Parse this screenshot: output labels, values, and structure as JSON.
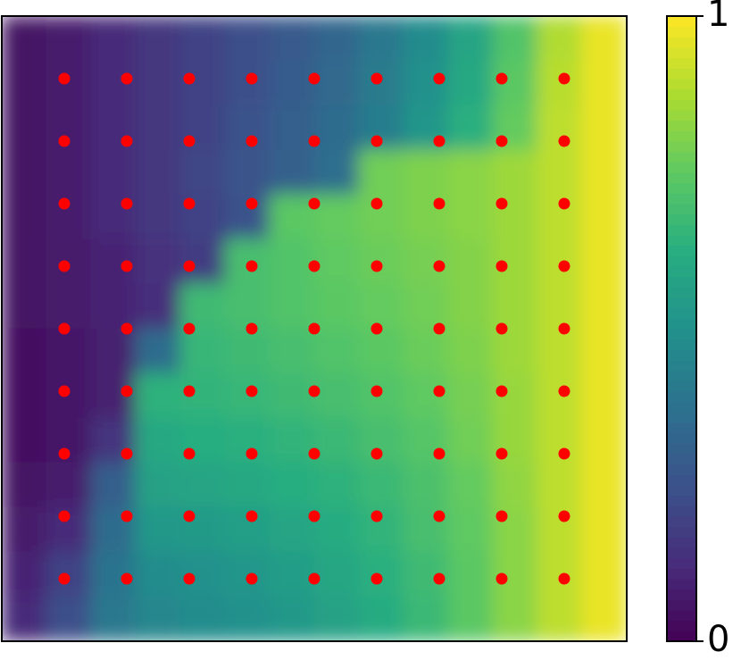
{
  "chart_data": {
    "type": "heatmap-scatter",
    "xlim": [
      0,
      1
    ],
    "ylim": [
      0,
      1
    ],
    "z": [
      [
        0.05,
        0.08,
        0.12,
        0.16,
        0.2,
        0.24,
        0.28,
        0.33,
        0.4,
        0.48,
        0.58,
        0.72,
        0.88,
        0.97
      ],
      [
        0.05,
        0.08,
        0.12,
        0.16,
        0.2,
        0.24,
        0.29,
        0.34,
        0.41,
        0.5,
        0.6,
        0.74,
        0.89,
        0.97
      ],
      [
        0.05,
        0.08,
        0.12,
        0.16,
        0.2,
        0.25,
        0.3,
        0.35,
        0.42,
        0.52,
        0.63,
        0.76,
        0.9,
        0.97
      ],
      [
        0.05,
        0.08,
        0.12,
        0.16,
        0.21,
        0.26,
        0.31,
        0.36,
        0.78,
        0.8,
        0.82,
        0.85,
        0.9,
        0.97
      ],
      [
        0.05,
        0.08,
        0.12,
        0.16,
        0.2,
        0.25,
        0.74,
        0.76,
        0.78,
        0.8,
        0.82,
        0.85,
        0.9,
        0.97
      ],
      [
        0.05,
        0.07,
        0.1,
        0.14,
        0.18,
        0.7,
        0.72,
        0.75,
        0.77,
        0.79,
        0.81,
        0.85,
        0.9,
        0.97
      ],
      [
        0.05,
        0.07,
        0.1,
        0.13,
        0.68,
        0.7,
        0.72,
        0.74,
        0.76,
        0.78,
        0.81,
        0.85,
        0.9,
        0.97
      ],
      [
        0.04,
        0.06,
        0.09,
        0.35,
        0.66,
        0.68,
        0.7,
        0.72,
        0.74,
        0.77,
        0.8,
        0.85,
        0.9,
        0.97
      ],
      [
        0.04,
        0.06,
        0.09,
        0.64,
        0.65,
        0.66,
        0.68,
        0.7,
        0.72,
        0.75,
        0.79,
        0.84,
        0.9,
        0.97
      ],
      [
        0.04,
        0.06,
        0.15,
        0.6,
        0.62,
        0.63,
        0.65,
        0.67,
        0.7,
        0.73,
        0.78,
        0.84,
        0.9,
        0.97
      ],
      [
        0.05,
        0.08,
        0.3,
        0.57,
        0.58,
        0.6,
        0.62,
        0.64,
        0.67,
        0.71,
        0.76,
        0.83,
        0.9,
        0.97
      ],
      [
        0.07,
        0.12,
        0.35,
        0.53,
        0.54,
        0.56,
        0.58,
        0.61,
        0.65,
        0.7,
        0.75,
        0.82,
        0.9,
        0.97
      ],
      [
        0.1,
        0.2,
        0.38,
        0.48,
        0.5,
        0.52,
        0.55,
        0.59,
        0.63,
        0.68,
        0.74,
        0.82,
        0.9,
        0.97
      ],
      [
        0.12,
        0.24,
        0.4,
        0.46,
        0.48,
        0.5,
        0.53,
        0.57,
        0.61,
        0.67,
        0.74,
        0.82,
        0.9,
        0.97
      ]
    ],
    "colormap": [
      "#440154",
      "#472d7b",
      "#3b528b",
      "#2c728e",
      "#21918c",
      "#28ae80",
      "#5ec962",
      "#addc30",
      "#fde725"
    ],
    "clim": [
      0,
      1
    ],
    "cticks": [
      0,
      1
    ],
    "points": {
      "color": "#ff0000",
      "x": [
        0.1,
        0.2,
        0.3,
        0.4,
        0.5,
        0.6,
        0.7,
        0.8,
        0.9,
        0.1,
        0.2,
        0.3,
        0.4,
        0.5,
        0.6,
        0.7,
        0.8,
        0.9,
        0.1,
        0.2,
        0.3,
        0.4,
        0.5,
        0.6,
        0.7,
        0.8,
        0.9,
        0.1,
        0.2,
        0.3,
        0.4,
        0.5,
        0.6,
        0.7,
        0.8,
        0.9,
        0.1,
        0.2,
        0.3,
        0.4,
        0.5,
        0.6,
        0.7,
        0.8,
        0.9,
        0.1,
        0.2,
        0.3,
        0.4,
        0.5,
        0.6,
        0.7,
        0.8,
        0.9,
        0.1,
        0.2,
        0.3,
        0.4,
        0.5,
        0.6,
        0.7,
        0.8,
        0.9,
        0.1,
        0.2,
        0.3,
        0.4,
        0.5,
        0.6,
        0.7,
        0.8,
        0.9,
        0.1,
        0.2,
        0.3,
        0.4,
        0.5,
        0.6,
        0.7,
        0.8,
        0.9
      ],
      "y": [
        0.9,
        0.9,
        0.9,
        0.9,
        0.9,
        0.9,
        0.9,
        0.9,
        0.9,
        0.8,
        0.8,
        0.8,
        0.8,
        0.8,
        0.8,
        0.8,
        0.8,
        0.8,
        0.7,
        0.7,
        0.7,
        0.7,
        0.7,
        0.7,
        0.7,
        0.7,
        0.7,
        0.6,
        0.6,
        0.6,
        0.6,
        0.6,
        0.6,
        0.6,
        0.6,
        0.6,
        0.5,
        0.5,
        0.5,
        0.5,
        0.5,
        0.5,
        0.5,
        0.5,
        0.5,
        0.4,
        0.4,
        0.4,
        0.4,
        0.4,
        0.4,
        0.4,
        0.4,
        0.4,
        0.3,
        0.3,
        0.3,
        0.3,
        0.3,
        0.3,
        0.3,
        0.3,
        0.3,
        0.2,
        0.2,
        0.2,
        0.2,
        0.2,
        0.2,
        0.2,
        0.2,
        0.2,
        0.1,
        0.1,
        0.1,
        0.1,
        0.1,
        0.1,
        0.1,
        0.1,
        0.1
      ]
    }
  }
}
